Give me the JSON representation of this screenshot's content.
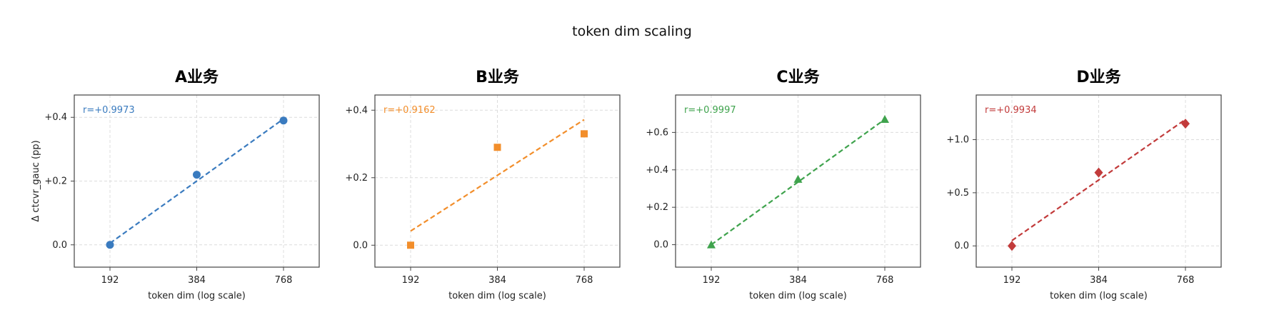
{
  "figure": {
    "suptitle": "token dim scaling"
  },
  "chart_data": [
    {
      "type": "scatter",
      "title": "A业务",
      "xlabel": "token dim (log scale)",
      "ylabel": "Δ ctcvr_gauc (pp)",
      "x_scale": "log",
      "x": [
        192,
        384,
        768
      ],
      "x_tick_labels": [
        "192",
        "384",
        "768"
      ],
      "y_tick_values": [
        0,
        0.2,
        0.4
      ],
      "y_tick_labels": [
        "0.0",
        "+0.2",
        "+0.4"
      ],
      "ylim": [
        -0.07,
        0.47
      ],
      "series": [
        {
          "values": [
            0.0,
            0.22,
            0.39
          ],
          "marker": "circle"
        }
      ],
      "fit_line": {
        "style": "dashed",
        "values": [
          0.005,
          0.205,
          0.395
        ]
      },
      "annotation": "r=+0.9973",
      "color": "#3a7bbf",
      "grid": true
    },
    {
      "type": "scatter",
      "title": "B业务",
      "xlabel": "token dim (log scale)",
      "ylabel": "",
      "x_scale": "log",
      "x": [
        192,
        384,
        768
      ],
      "x_tick_labels": [
        "192",
        "384",
        "768"
      ],
      "y_tick_values": [
        0,
        0.2,
        0.4
      ],
      "y_tick_labels": [
        "0.0",
        "+0.2",
        "+0.4"
      ],
      "ylim": [
        -0.065,
        0.445
      ],
      "series": [
        {
          "values": [
            0.0,
            0.29,
            0.33
          ],
          "marker": "square"
        }
      ],
      "fit_line": {
        "style": "dashed",
        "values": [
          0.042,
          0.207,
          0.372
        ]
      },
      "annotation": "r=+0.9162",
      "color": "#f28e2b",
      "grid": true
    },
    {
      "type": "scatter",
      "title": "C业务",
      "xlabel": "token dim (log scale)",
      "ylabel": "",
      "x_scale": "log",
      "x": [
        192,
        384,
        768
      ],
      "x_tick_labels": [
        "192",
        "384",
        "768"
      ],
      "y_tick_values": [
        0,
        0.2,
        0.4,
        0.6
      ],
      "y_tick_labels": [
        "0.0",
        "+0.2",
        "+0.4",
        "+0.6"
      ],
      "ylim": [
        -0.12,
        0.8
      ],
      "series": [
        {
          "values": [
            0.0,
            0.35,
            0.67
          ],
          "marker": "triangle"
        }
      ],
      "fit_line": {
        "style": "dashed",
        "values": [
          0.0,
          0.335,
          0.67
        ]
      },
      "annotation": "r=+0.9997",
      "color": "#3fa34d",
      "grid": true
    },
    {
      "type": "scatter",
      "title": "D业务",
      "xlabel": "token dim (log scale)",
      "ylabel": "",
      "x_scale": "log",
      "x": [
        192,
        384,
        768
      ],
      "x_tick_labels": [
        "192",
        "384",
        "768"
      ],
      "y_tick_values": [
        0,
        0.5,
        1.0
      ],
      "y_tick_labels": [
        "0.0",
        "+0.5",
        "+1.0"
      ],
      "ylim": [
        -0.2,
        1.42
      ],
      "series": [
        {
          "values": [
            0.0,
            0.69,
            1.15
          ],
          "marker": "diamond"
        }
      ],
      "fit_line": {
        "style": "dashed",
        "values": [
          0.05,
          0.62,
          1.19
        ]
      },
      "annotation": "r=+0.9934",
      "color": "#c23b3b",
      "grid": true
    }
  ]
}
